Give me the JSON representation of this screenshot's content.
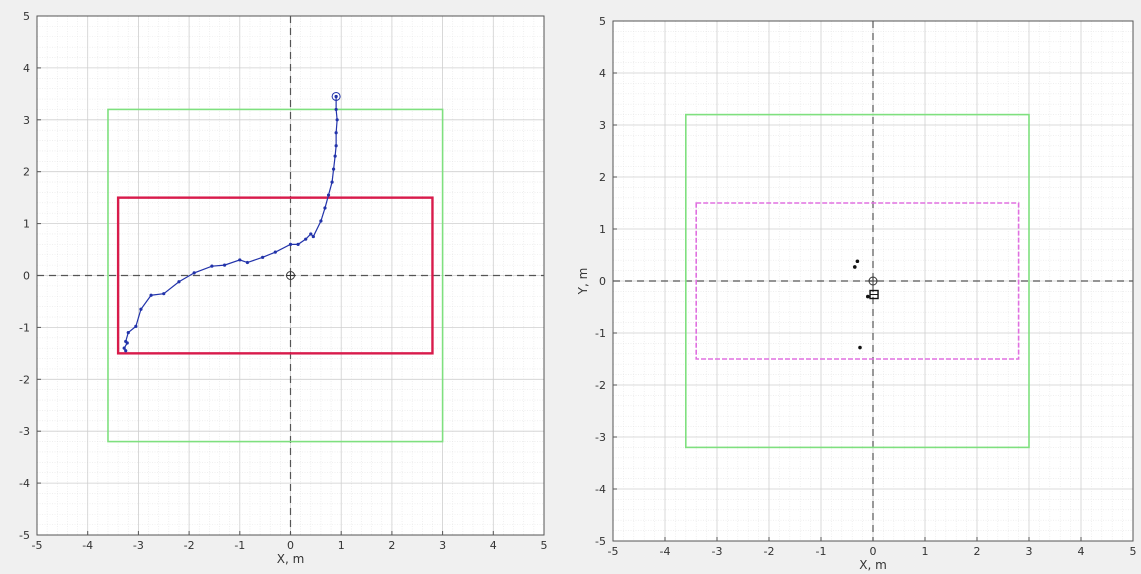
{
  "colors": {
    "figure_bg": "#f0f0f0",
    "axes_bg": "#ffffff",
    "minor_grid": "#e6e6e6",
    "major_grid": "#cfcfcf",
    "green_box": "#7fe07f",
    "red_box": "#d81b4b",
    "magenta_box": "#e070e0",
    "trajectory": "#2233aa",
    "crosshair": "#555555",
    "points": "#111111"
  },
  "chart_data": [
    {
      "type": "line",
      "title": "",
      "xlabel": "X, m",
      "ylabel": "",
      "xlim": [
        -5,
        5
      ],
      "ylim": [
        -5,
        5
      ],
      "x_ticks": [
        "-5",
        "-4",
        "-3",
        "-2",
        "-1",
        "0",
        "1",
        "2",
        "3",
        "4",
        "5"
      ],
      "y_ticks": [
        "-5",
        "-4",
        "-3",
        "-2",
        "-1",
        "0",
        "1",
        "2",
        "3",
        "4",
        "5"
      ],
      "grid": "on (major + minor)",
      "legend": "none",
      "zero_lines": "dashed",
      "origin_marker": "circle-plus",
      "boxes": [
        {
          "name": "outer",
          "style": "solid",
          "color": "#7fe07f",
          "x": [
            -3.6,
            3.0
          ],
          "y": [
            -3.2,
            3.2
          ]
        },
        {
          "name": "inner",
          "style": "solid",
          "color": "#d81b4b",
          "x": [
            -3.4,
            2.8
          ],
          "y": [
            -1.5,
            1.5
          ]
        }
      ],
      "series": [
        {
          "marker": "dot",
          "color": "#2233aa",
          "x": [
            0.9,
            0.9,
            0.92,
            0.9,
            0.9,
            0.88,
            0.85,
            0.82,
            0.75,
            0.68,
            0.6,
            0.45,
            0.4,
            0.3,
            0.15,
            0.0,
            -0.3,
            -0.55,
            -0.85,
            -1.0,
            -1.3,
            -1.55,
            -1.9,
            -2.2,
            -2.5,
            -2.75,
            -2.95,
            -3.05,
            -3.2,
            -3.25,
            -3.22,
            -3.28,
            -3.25
          ],
          "y": [
            3.45,
            3.2,
            3.0,
            2.75,
            2.5,
            2.3,
            2.05,
            1.8,
            1.55,
            1.3,
            1.05,
            0.75,
            0.8,
            0.7,
            0.6,
            0.6,
            0.45,
            0.35,
            0.25,
            0.3,
            0.2,
            0.18,
            0.05,
            -0.12,
            -0.35,
            -0.38,
            -0.65,
            -0.98,
            -1.1,
            -1.27,
            -1.3,
            -1.4,
            -1.45
          ]
        }
      ],
      "start_marker": {
        "x": 0.9,
        "y": 3.45
      }
    },
    {
      "type": "scatter",
      "title": "",
      "xlabel": "X, m",
      "ylabel": "Y, m",
      "xlim": [
        -5,
        5
      ],
      "ylim": [
        -5,
        5
      ],
      "x_ticks": [
        "-5",
        "-4",
        "-3",
        "-2",
        "-1",
        "0",
        "1",
        "2",
        "3",
        "4",
        "5"
      ],
      "y_ticks": [
        "-5",
        "-4",
        "-3",
        "-2",
        "-1",
        "0",
        "1",
        "2",
        "3",
        "4",
        "5"
      ],
      "grid": "on (major + minor)",
      "legend": "none",
      "zero_lines": "dashed",
      "origin_marker": "circle-plus",
      "boxes": [
        {
          "name": "outer",
          "style": "solid",
          "color": "#7fe07f",
          "x": [
            -3.6,
            3.0
          ],
          "y": [
            -3.2,
            3.2
          ]
        },
        {
          "name": "inner",
          "style": "dashed",
          "color": "#e070e0",
          "x": [
            -3.4,
            2.8
          ],
          "y": [
            -1.5,
            1.5
          ]
        }
      ],
      "series": [
        {
          "marker": "dot",
          "color": "#111111",
          "x": [
            -0.3,
            -0.35,
            -0.1,
            -0.25
          ],
          "y": [
            0.38,
            0.27,
            -0.3,
            -1.28
          ]
        }
      ],
      "square_marker": {
        "x": 0.02,
        "y": -0.26
      }
    }
  ]
}
